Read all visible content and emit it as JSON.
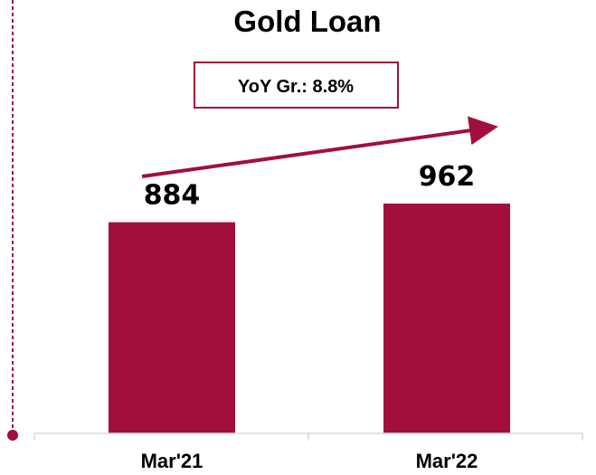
{
  "chart_data": {
    "type": "bar",
    "title": "Gold Loan",
    "categories": [
      "Mar'21",
      "Mar'22"
    ],
    "values": [
      884,
      962
    ],
    "data_labels": [
      "884",
      "962"
    ],
    "annotation": "YoY Gr.: 8.8%",
    "xlabel": "",
    "ylabel": "",
    "ylim": [
      0,
      1000
    ],
    "grid": false,
    "legend": "none"
  },
  "colors": {
    "bar": "#A20F3A",
    "accent": "#A20F3A",
    "axis": "#D9D9D9"
  }
}
